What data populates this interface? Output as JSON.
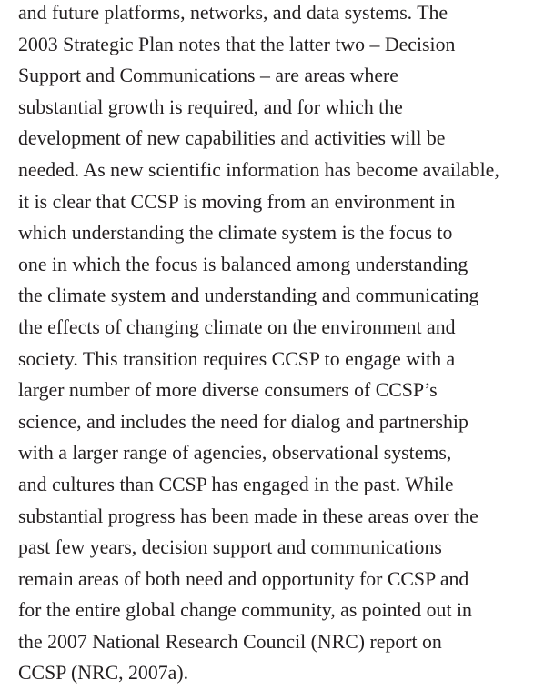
{
  "paragraph": {
    "lines": [
      "and future platforms, networks, and data systems. The",
      "2003 Strategic Plan notes that the latter two – Decision",
      "Support and Communications – are areas where",
      "substantial growth is required, and for which the",
      "development of new capabilities and activities will be",
      "needed. As new scientific information has become available,",
      "it is clear that CCSP is moving from an environment in",
      "which understanding the climate system is the focus to",
      "one in which the focus is balanced among understanding",
      "the climate system and understanding and communicating",
      "the effects of changing climate on the environment and",
      "society. This transition requires CCSP to engage with a",
      "larger number of more diverse consumers of CCSP’s",
      "science, and includes the need for dialog and partnership",
      "with a larger range of agencies, observational systems,",
      "and cultures than CCSP has engaged in the past. While",
      "substantial progress has been made in these areas over the",
      "past few years, decision support and communications",
      "remain areas of both need and opportunity for CCSP and",
      "for the entire global change community, as pointed out in",
      "the 2007 National Research Council (NRC) report on",
      "CCSP (NRC, 2007a)."
    ]
  }
}
